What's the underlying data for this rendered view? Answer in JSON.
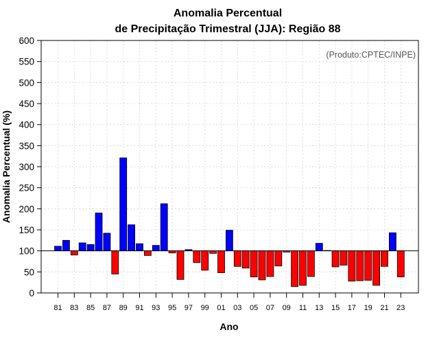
{
  "chart_data": {
    "type": "bar",
    "title": [
      "Anomalia Percentual",
      "de Precipitação Trimestral (JJA): Região 88"
    ],
    "xlabel": "Ano",
    "ylabel": "Anomalia Percentual (%)",
    "credit": "(Produto:CPTEC/INPE)",
    "baseline": 100,
    "ylim": [
      0,
      600
    ],
    "yticks": [
      0,
      50,
      100,
      150,
      200,
      250,
      300,
      350,
      400,
      450,
      500,
      550,
      600
    ],
    "xtick_labels": [
      "81",
      "83",
      "85",
      "87",
      "89",
      "91",
      "93",
      "95",
      "97",
      "99",
      "01",
      "03",
      "05",
      "07",
      "09",
      "11",
      "13",
      "15",
      "17",
      "19",
      "21",
      "23"
    ],
    "grid": true,
    "colors": {
      "above": "#0000ff",
      "below": "#ff0000",
      "outline": "#000000",
      "grid": "#d3d3d3"
    },
    "categories": [
      "1981",
      "1982",
      "1983",
      "1984",
      "1985",
      "1986",
      "1987",
      "1988",
      "1989",
      "1990",
      "1991",
      "1992",
      "1993",
      "1994",
      "1995",
      "1996",
      "1997",
      "1998",
      "1999",
      "2000",
      "2001",
      "2002",
      "2003",
      "2004",
      "2005",
      "2006",
      "2007",
      "2008",
      "2009",
      "2010",
      "2011",
      "2012",
      "2013",
      "2014",
      "2015",
      "2016",
      "2017",
      "2018",
      "2019",
      "2020",
      "2021",
      "2022",
      "2023"
    ],
    "values": [
      111,
      125,
      90,
      119,
      115,
      190,
      142,
      45,
      321,
      162,
      117,
      89,
      113,
      212,
      95,
      32,
      103,
      72,
      54,
      94,
      48,
      149,
      63,
      59,
      38,
      31,
      39,
      64,
      97,
      15,
      18,
      39,
      118,
      101,
      62,
      66,
      28,
      29,
      30,
      18,
      63,
      143,
      38
    ]
  }
}
